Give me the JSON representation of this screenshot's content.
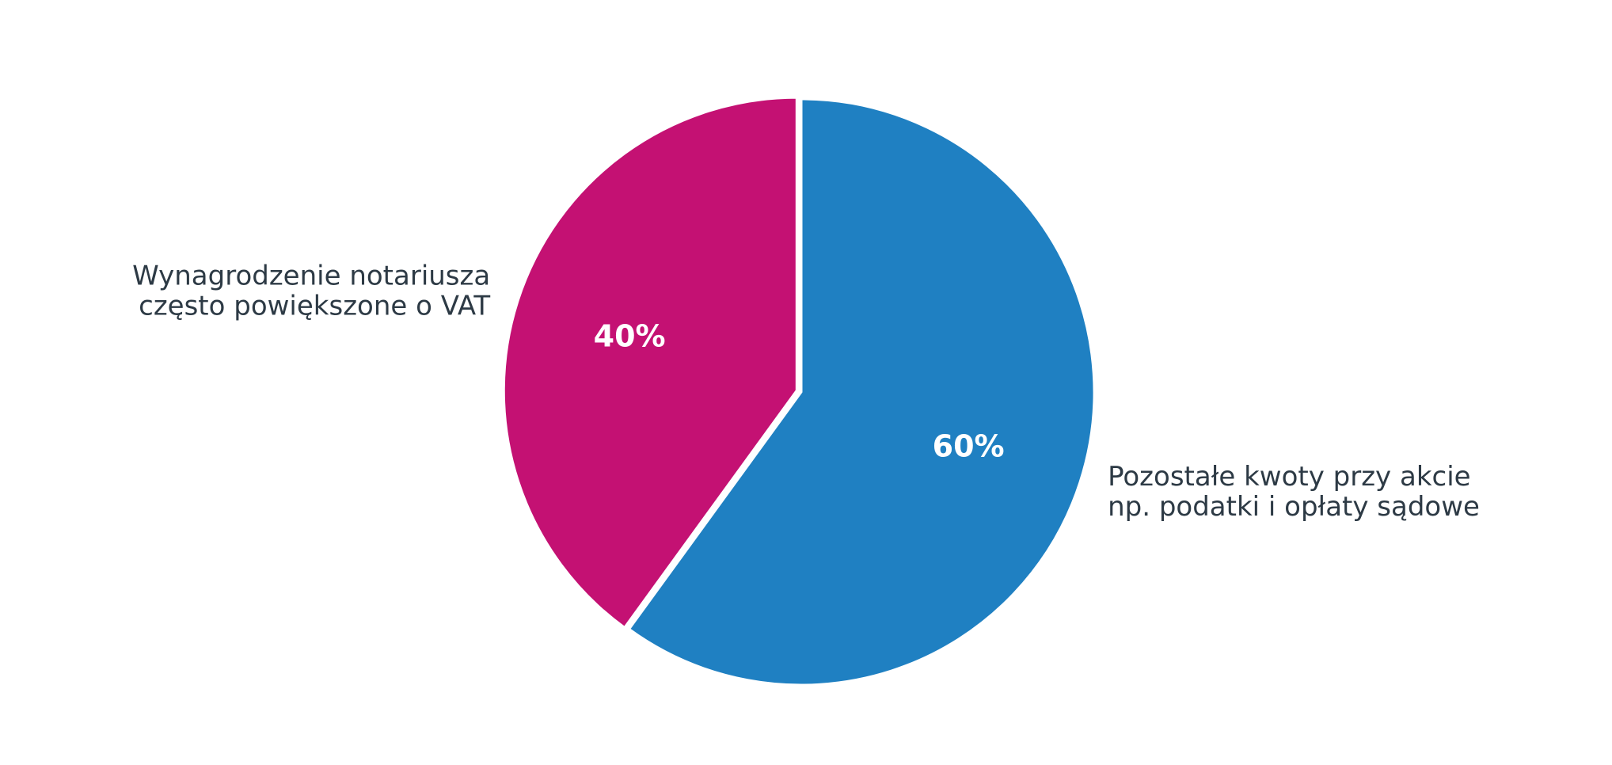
{
  "chart_data": {
    "type": "pie",
    "title": "",
    "start_angle_deg": 90,
    "direction": "counterclockwise",
    "slices": [
      {
        "label_lines": [
          "Wynagrodzenie notariusza",
          "często powiększone o VAT"
        ],
        "value": 40,
        "pct_label": "40%",
        "color": "#c41173",
        "exploded": true
      },
      {
        "label_lines": [
          "Pozostałe kwoty przy akcie",
          "np. podatki i opłaty sądowe"
        ],
        "value": 60,
        "pct_label": "60%",
        "color": "#1f80c2",
        "exploded": false
      }
    ],
    "separator_color": "#ffffff",
    "label_color": "#2d3a45",
    "pct_label_color": "#ffffff",
    "legend": "none"
  }
}
